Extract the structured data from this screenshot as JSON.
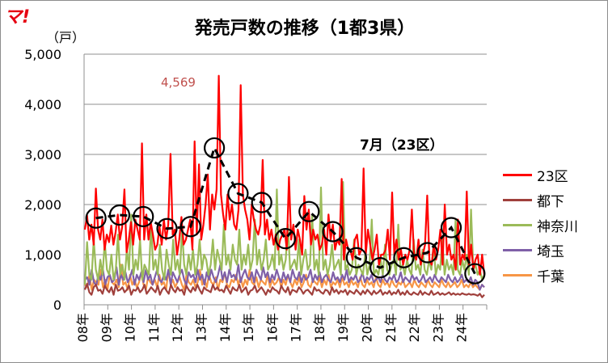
{
  "logo_text": "マ!",
  "title": "発売戸数の推移（1都3県）",
  "unit_label": "（戸）",
  "peak_label": "4,569",
  "annotation": "7月（23区）",
  "chart_data": {
    "type": "line",
    "ylim": [
      0,
      5000
    ],
    "y_ticks": [
      "5,000",
      "4,000",
      "3,000",
      "2,000",
      "1,000",
      "0"
    ],
    "x_labels": [
      "08年",
      "09年",
      "10年",
      "11年",
      "12年",
      "13年",
      "14年",
      "15年",
      "16年",
      "17年",
      "18年",
      "19年",
      "20年",
      "21年",
      "22年",
      "23年",
      "24年"
    ],
    "grid": true,
    "legend_position": "right",
    "series": [
      {
        "name": "23区",
        "color": "#ff0000",
        "values": [
          1500,
          1780,
          1300,
          1600,
          1200,
          2320,
          1500,
          1300,
          1700,
          1100,
          1400,
          1250,
          1580,
          1200,
          1450,
          1800,
          1300,
          1550,
          2300,
          1050,
          1300,
          1650,
          1200,
          1700,
          1500,
          1300,
          3220,
          1300,
          1800,
          1300,
          1650,
          1400,
          1100,
          1200,
          1560,
          1200,
          1700,
          1300,
          1600,
          3010,
          1400,
          1500,
          1000,
          1300,
          1750,
          1200,
          1300,
          1500,
          1700,
          1100,
          3260,
          1400,
          2800,
          1300,
          1600,
          2000,
          2600,
          1500,
          2200,
          1900,
          2300,
          4569,
          2200,
          1800,
          1500,
          2200,
          1700,
          2000,
          1600,
          1500,
          1900,
          4380,
          2200,
          1900,
          1700,
          1300,
          2000,
          1700,
          1500,
          1400,
          1600,
          2890,
          1400,
          1700,
          1300,
          1500,
          1200,
          1400,
          1100,
          1300,
          1400,
          1500,
          1100,
          2550,
          1300,
          1600,
          1100,
          1500,
          1300,
          1000,
          2170,
          1500,
          1900,
          1200,
          1500,
          1300,
          1400,
          1100,
          1200,
          1500,
          1000,
          1800,
          1300,
          1600,
          1100,
          1300,
          1200,
          2510,
          900,
          1300,
          1100,
          1100,
          900,
          1300,
          1400,
          1000,
          1100,
          2720,
          1000,
          1500,
          1200,
          900,
          1100,
          1400,
          800,
          1000,
          1000,
          1100,
          1500,
          900,
          2240,
          1000,
          1300,
          900,
          1100,
          800,
          1000,
          900,
          1100,
          1900,
          1000,
          900,
          1300,
          800,
          1000,
          1200,
          2180,
          900,
          800,
          1200,
          900,
          1100,
          1500,
          800,
          2000,
          1000,
          1200,
          900,
          1000,
          700,
          1700,
          800,
          1000,
          900,
          2260,
          800,
          1200,
          700,
          900,
          1000,
          600,
          1000,
          600
        ]
      },
      {
        "name": "都下",
        "color": "#a0403c",
        "values": [
          300,
          420,
          250,
          200,
          350,
          400,
          280,
          300,
          220,
          380,
          300,
          250,
          350,
          200,
          400,
          280,
          300,
          350,
          250,
          300,
          380,
          200,
          300,
          280,
          350,
          250,
          300,
          400,
          220,
          280,
          350,
          300,
          250,
          380,
          200,
          300,
          350,
          280,
          220,
          400,
          300,
          250,
          350,
          280,
          300,
          200,
          380,
          300,
          250,
          350,
          280,
          400,
          300,
          220,
          350,
          300,
          280,
          250,
          400,
          300,
          350,
          280,
          300,
          250,
          380,
          300,
          220,
          350,
          300,
          280,
          400,
          250,
          300,
          350,
          200,
          280,
          300,
          380,
          250,
          300,
          350,
          280,
          200,
          300,
          250,
          350,
          300,
          280,
          220,
          380,
          300,
          250,
          350,
          200,
          300,
          280,
          250,
          350,
          300,
          220,
          280,
          300,
          250,
          200,
          350,
          280,
          300,
          250,
          220,
          300,
          280,
          200,
          350,
          250,
          300,
          220,
          280,
          250,
          300,
          200,
          280,
          250,
          220,
          300,
          250,
          200,
          280,
          220,
          300,
          250,
          200,
          280,
          220,
          250,
          300,
          200,
          250,
          220,
          280,
          200,
          250,
          220,
          300,
          200,
          250,
          200,
          280,
          220,
          200,
          250,
          220,
          200,
          280,
          200,
          250,
          220,
          200,
          280,
          200,
          220,
          250,
          200,
          230,
          200,
          220,
          250,
          200,
          230,
          200,
          220,
          200,
          230,
          210,
          200,
          220,
          200,
          210,
          200,
          180,
          220,
          150,
          200
        ]
      },
      {
        "name": "神奈川",
        "color": "#9bbb59",
        "values": [
          400,
          1250,
          600,
          500,
          1300,
          700,
          500,
          900,
          600,
          1250,
          700,
          600,
          1000,
          500,
          700,
          1400,
          600,
          800,
          500,
          1100,
          700,
          1800,
          600,
          900,
          700,
          1300,
          500,
          800,
          700,
          600,
          1600,
          700,
          900,
          600,
          1200,
          700,
          500,
          1100,
          800,
          600,
          1300,
          700,
          900,
          600,
          1500,
          800,
          600,
          1000,
          700,
          1100,
          600,
          800,
          1300,
          700,
          1000,
          900,
          600,
          800,
          1300,
          700,
          1100,
          900,
          700,
          1600,
          800,
          1000,
          700,
          1200,
          900,
          800,
          1500,
          700,
          1000,
          800,
          1200,
          700,
          900,
          1700,
          800,
          1100,
          700,
          900,
          1300,
          700,
          800,
          1000,
          700,
          2300,
          800,
          1000,
          700,
          900,
          1600,
          700,
          800,
          900,
          700,
          1300,
          600,
          900,
          1100,
          700,
          800,
          1800,
          700,
          900,
          600,
          2340,
          700,
          900,
          600,
          800,
          1200,
          700,
          800,
          900,
          600,
          2450,
          700,
          800,
          600,
          700,
          1300,
          600,
          800,
          700,
          600,
          1000,
          600,
          800,
          1700,
          600,
          700,
          600,
          900,
          600,
          1200,
          700,
          600,
          800,
          900,
          600,
          1600,
          700,
          800,
          600,
          900,
          700,
          600,
          1300,
          700,
          800,
          600,
          1100,
          700,
          600,
          900,
          700,
          1200,
          600,
          800,
          700,
          1300,
          600,
          900,
          700,
          800,
          600,
          1700,
          700,
          600,
          900,
          700,
          1000,
          600,
          1900,
          700,
          800,
          600,
          700,
          500,
          600
        ]
      },
      {
        "name": "埼玉",
        "color": "#7f60a8",
        "values": [
          500,
          550,
          400,
          700,
          450,
          380,
          600,
          500,
          700,
          400,
          550,
          600,
          450,
          500,
          750,
          400,
          600,
          500,
          650,
          450,
          550,
          700,
          400,
          600,
          500,
          650,
          450,
          700,
          500,
          600,
          400,
          550,
          700,
          500,
          450,
          600,
          500,
          700,
          400,
          650,
          550,
          450,
          600,
          700,
          500,
          400,
          650,
          550,
          600,
          450,
          700,
          500,
          600,
          400,
          650,
          500,
          700,
          550,
          450,
          600,
          800,
          500,
          650,
          450,
          700,
          550,
          600,
          500,
          800,
          450,
          600,
          700,
          550,
          500,
          650,
          450,
          700,
          600,
          500,
          750,
          550,
          650,
          450,
          600,
          500,
          700,
          550,
          450,
          650,
          500,
          600,
          450,
          700,
          550,
          500,
          650,
          450,
          600,
          500,
          550,
          700,
          450,
          600,
          500,
          650,
          450,
          550,
          600,
          500,
          450,
          650,
          500,
          550,
          450,
          600,
          500,
          700,
          450,
          550,
          500,
          600,
          450,
          500,
          650,
          450,
          550,
          500,
          600,
          450,
          500,
          550,
          450,
          600,
          500,
          450,
          550,
          500,
          600,
          450,
          500,
          650,
          450,
          550,
          500,
          450,
          600,
          500,
          550,
          450,
          500,
          600,
          450,
          500,
          550,
          450,
          600,
          500,
          450,
          550,
          500,
          450,
          600,
          500,
          450,
          550,
          450,
          500,
          600,
          450,
          500,
          450,
          550,
          400,
          500,
          450,
          300,
          400,
          350
        ]
      },
      {
        "name": "千葉",
        "color": "#f79646",
        "values": [
          400,
          350,
          600,
          300,
          500,
          450,
          400,
          700,
          350,
          500,
          300,
          600,
          450,
          400,
          500,
          350,
          800,
          400,
          450,
          300,
          600,
          400,
          500,
          350,
          450,
          650,
          400,
          300,
          550,
          450,
          400,
          500,
          350,
          600,
          400,
          450,
          300,
          700,
          400,
          500,
          350,
          450,
          550,
          400,
          300,
          600,
          450,
          400,
          500,
          350,
          450,
          700,
          400,
          500,
          350,
          600,
          450,
          400,
          550,
          300,
          500,
          450,
          650,
          400,
          350,
          500,
          450,
          600,
          400,
          550,
          350,
          500,
          400,
          700,
          450,
          400,
          550,
          350,
          500,
          450,
          400,
          600,
          350,
          500,
          400,
          450,
          550,
          350,
          500,
          400,
          600,
          450,
          350,
          500,
          400,
          550,
          350,
          450,
          600,
          400,
          350,
          500,
          450,
          400,
          550,
          350,
          500,
          400,
          600,
          350,
          450,
          400,
          500,
          350,
          550,
          400,
          450,
          350,
          500,
          400,
          450,
          350,
          550,
          400,
          350,
          500,
          400,
          450,
          350,
          550,
          400,
          350,
          500,
          400,
          450,
          350,
          500,
          400,
          350,
          450,
          400,
          500,
          350,
          400,
          450,
          350,
          500,
          400,
          350,
          450,
          400,
          350,
          500,
          400,
          350,
          450,
          400,
          350,
          500,
          400,
          350,
          450,
          350,
          400,
          450,
          350,
          400,
          500,
          350,
          400,
          350,
          450,
          350,
          400,
          350,
          300,
          400,
          350
        ]
      },
      {
        "name": "",
        "type": "marker-line",
        "color": "#000000",
        "x": [
          0.5,
          1.5,
          2.5,
          3.5,
          4.5,
          5.5,
          6.5,
          7.5,
          8.5,
          9.5,
          10.5,
          11.5,
          12.5,
          13.5,
          14.5,
          15.5,
          16.5
        ],
        "values": [
          1730,
          1790,
          1760,
          1520,
          1560,
          3130,
          2220,
          2040,
          1320,
          1860,
          1460,
          940,
          740,
          940,
          1040,
          1540,
          620
        ]
      }
    ]
  }
}
